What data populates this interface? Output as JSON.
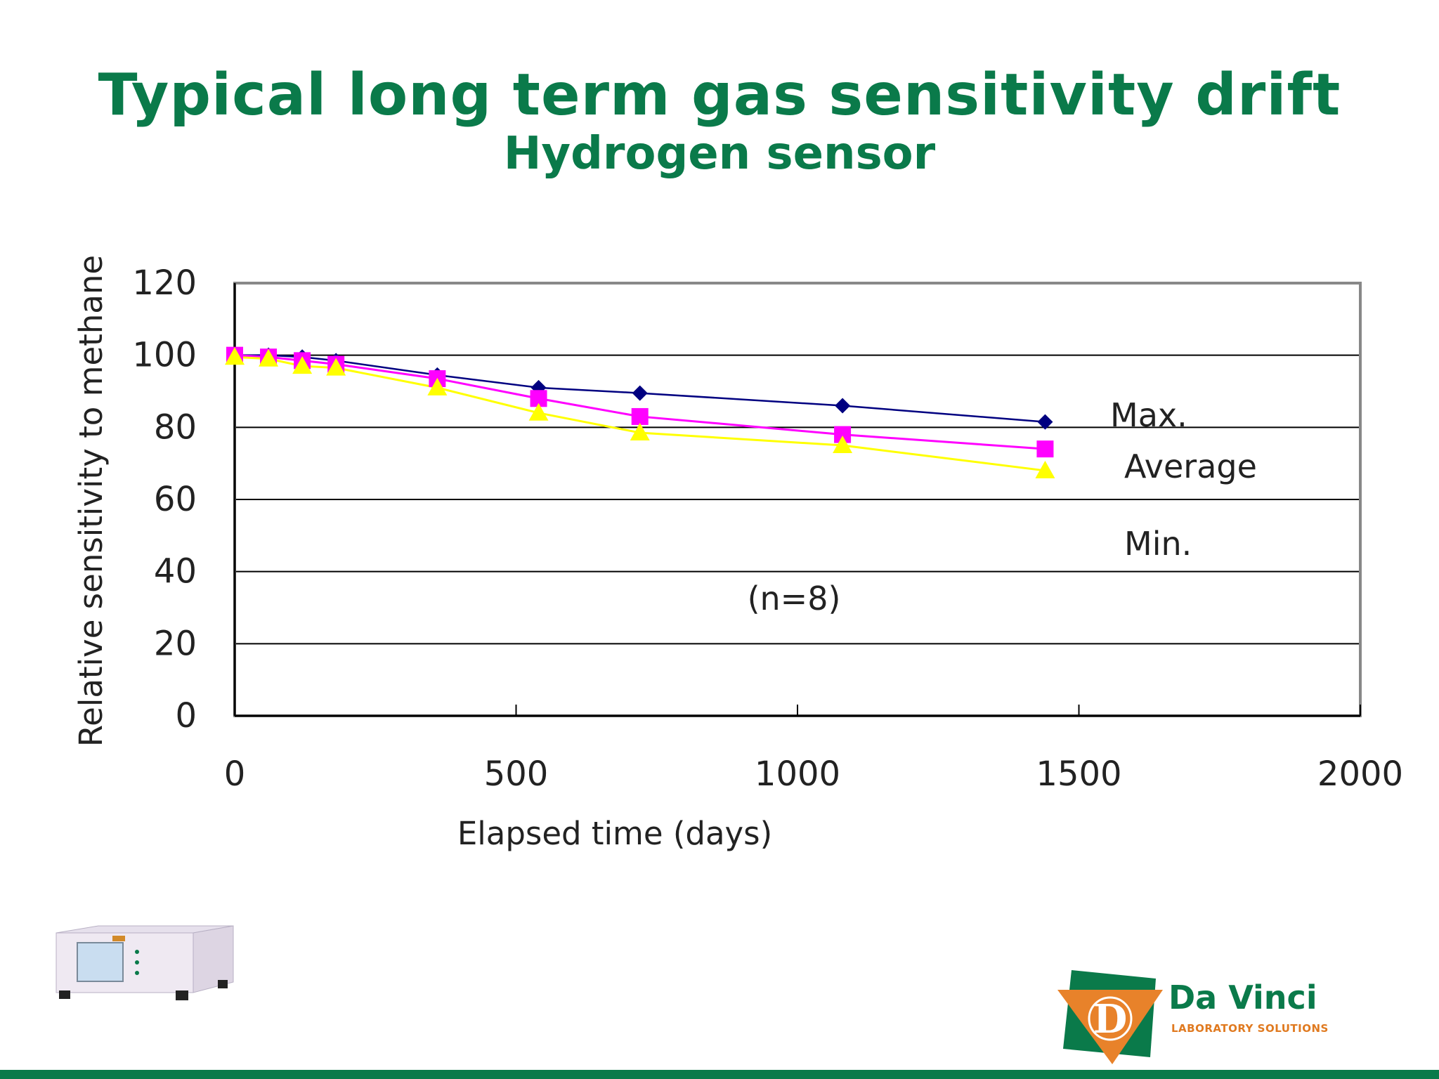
{
  "slide": {
    "title": "Typical long term gas sensitivity drift",
    "subtitle": "Hydrogen sensor"
  },
  "colors": {
    "title": "#0a7a4a",
    "max_series": "#000080",
    "average_series": "#ff00ff",
    "min_series": "#ffff00"
  },
  "chart_data": {
    "type": "line",
    "xlabel": "Elapsed time (days)",
    "ylabel": "Relative sensitivity to methane",
    "xlim": [
      0,
      2000
    ],
    "ylim": [
      0,
      120
    ],
    "xticks": [
      "0",
      "500",
      "1000",
      "1500",
      "2000"
    ],
    "yticks": [
      "0",
      "20",
      "40",
      "60",
      "80",
      "100",
      "120"
    ],
    "grid": "horizontal",
    "annotation": "(n=8)",
    "series": [
      {
        "name": "Max.",
        "marker": "diamond",
        "x": [
          0,
          60,
          120,
          180,
          360,
          540,
          720,
          1080,
          1440
        ],
        "y": [
          100,
          100,
          99.5,
          98.5,
          94.5,
          91,
          89.5,
          86,
          81.5
        ]
      },
      {
        "name": "Average",
        "marker": "square",
        "x": [
          0,
          60,
          120,
          180,
          360,
          540,
          720,
          1080,
          1440
        ],
        "y": [
          100,
          99.5,
          98.5,
          97.5,
          93.5,
          88,
          83,
          78,
          74
        ]
      },
      {
        "name": "Min.",
        "marker": "triangle",
        "x": [
          0,
          60,
          120,
          180,
          360,
          540,
          720,
          1080,
          1440
        ],
        "y": [
          99.5,
          99,
          97,
          96.5,
          91,
          84,
          78.5,
          75,
          68
        ]
      }
    ]
  },
  "logo": {
    "name": "Da Vinci",
    "tagline": "LABORATORY SOLUTIONS"
  },
  "device": {
    "icon": "analyzer-device-icon"
  }
}
